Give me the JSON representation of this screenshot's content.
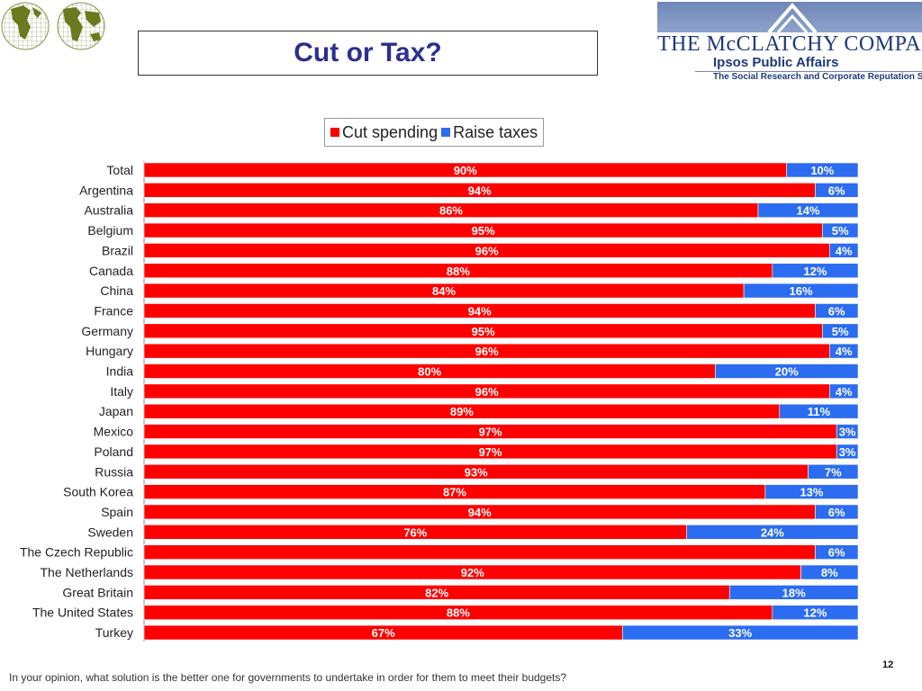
{
  "header": {
    "title": "Cut or Tax?",
    "company_name": "THE McCLATCHY COMPANY",
    "ipsos_name": "Ipsos Public Affairs",
    "tagline": "The Social Research and Corporate Reputation Specialists"
  },
  "colors": {
    "cut_spending": "#ff0000",
    "raise_taxes": "#2b6cf0",
    "title": "#2b2f8f",
    "brand": "#1f3a7a",
    "logo_green": "#6b7a1e"
  },
  "footer": {
    "question": "In your opinion, what solution is the better one for governments to undertake in order for them to meet their budgets?",
    "page_number": "12"
  },
  "chart_data": {
    "type": "bar",
    "orientation": "horizontal",
    "stacked": true,
    "percent_stacked": true,
    "legend_placement": "top-center",
    "grid": false,
    "xlim": [
      0,
      100
    ],
    "categories": [
      "Total",
      "Argentina",
      "Australia",
      "Belgium",
      "Brazil",
      "Canada",
      "China",
      "France",
      "Germany",
      "Hungary",
      "India",
      "Italy",
      "Japan",
      "Mexico",
      "Poland",
      "Russia",
      "South Korea",
      "Spain",
      "Sweden",
      "The Czech Republic",
      "The Netherlands",
      "Great Britain",
      "The United States",
      "Turkey"
    ],
    "series": [
      {
        "name": "Cut spending",
        "values": [
          90,
          94,
          86,
          95,
          96,
          88,
          84,
          94,
          95,
          96,
          80,
          96,
          89,
          97,
          97,
          93,
          87,
          94,
          76,
          94,
          92,
          82,
          88,
          67
        ],
        "labels": [
          "90%",
          "94%",
          "86%",
          "95%",
          "96%",
          "88%",
          "84%",
          "94%",
          "95%",
          "96%",
          "80%",
          "96%",
          "89%",
          "97%",
          "97%",
          "93%",
          "87%",
          "94%",
          "76%",
          "",
          "92%",
          "82%",
          "88%",
          "67%"
        ]
      },
      {
        "name": "Raise taxes",
        "values": [
          10,
          6,
          14,
          5,
          4,
          12,
          16,
          6,
          5,
          4,
          20,
          4,
          11,
          3,
          3,
          7,
          13,
          6,
          24,
          6,
          8,
          18,
          12,
          33
        ],
        "labels": [
          "10%",
          "6%",
          "14%",
          "5%",
          "4%",
          "12%",
          "16%",
          "6%",
          "5%",
          "4%",
          "20%",
          "4%",
          "11%",
          "3%",
          "3%",
          "7%",
          "13%",
          "6%",
          "24%",
          "6%",
          "8%",
          "18%",
          "12%",
          "33%"
        ]
      }
    ]
  }
}
